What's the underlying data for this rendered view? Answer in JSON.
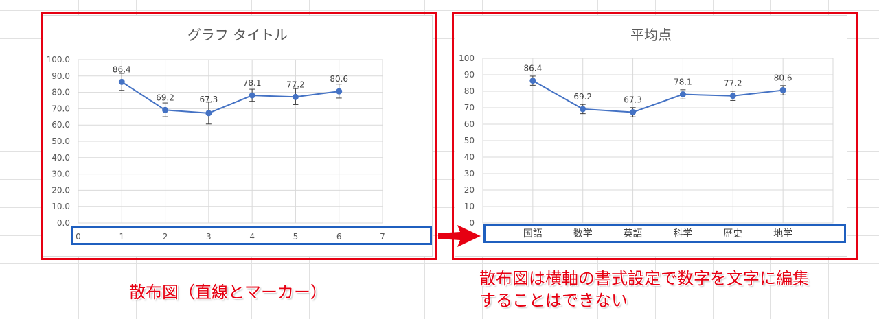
{
  "left_chart": {
    "title": "グラフ タイトル",
    "x_axis_ticks": [
      "0",
      "1",
      "2",
      "3",
      "4",
      "5",
      "6",
      "7"
    ],
    "y_axis_ticks": [
      "100.0",
      "90.0",
      "80.0",
      "70.0",
      "60.0",
      "50.0",
      "40.0",
      "30.0",
      "20.0",
      "10.0",
      "0.0"
    ]
  },
  "right_chart": {
    "title": "平均点",
    "x_axis_labels": [
      "国語",
      "数学",
      "英語",
      "科学",
      "歴史",
      "地学"
    ],
    "y_axis_ticks": [
      "100",
      "90",
      "80",
      "70",
      "60",
      "50",
      "40",
      "30",
      "20",
      "10",
      "0"
    ]
  },
  "captions": {
    "left": "散布図（直線とマーカー）",
    "right_line1": "散布図は横軸の書式設定で数字を文字に編集",
    "right_line2": "することはできない"
  },
  "colors": {
    "highlight_red": "#e60012",
    "highlight_blue": "#1f5fbf",
    "series": "#4472c4"
  },
  "chart_data": [
    {
      "type": "scatter",
      "title": "グラフ タイトル",
      "x": [
        1,
        2,
        3,
        4,
        5,
        6
      ],
      "values": [
        86.4,
        69.2,
        67.3,
        78.1,
        77.2,
        80.6
      ],
      "data_labels": [
        "86.4",
        "69.2",
        "67.3",
        "78.1",
        "77.2",
        "80.6"
      ],
      "error_bars": [
        [
          81.2,
          91.6
        ],
        [
          65.1,
          73.5
        ],
        [
          60.6,
          74.0
        ],
        [
          74.5,
          81.9
        ],
        [
          72.5,
          82.3
        ],
        [
          76.5,
          85.0
        ]
      ],
      "xlabel": "",
      "ylabel": "",
      "xlim": [
        0,
        7
      ],
      "ylim": [
        0,
        100
      ],
      "x_ticks": [
        0,
        1,
        2,
        3,
        4,
        5,
        6,
        7
      ],
      "y_ticks": [
        0,
        10,
        20,
        30,
        40,
        50,
        60,
        70,
        80,
        90,
        100
      ],
      "grid": true,
      "legend": "none",
      "markers": true,
      "lines": "straight"
    },
    {
      "type": "line",
      "title": "平均点",
      "categories": [
        "国語",
        "数学",
        "英語",
        "科学",
        "歴史",
        "地学"
      ],
      "values": [
        86.4,
        69.2,
        67.3,
        78.1,
        77.2,
        80.6
      ],
      "data_labels": [
        "86.4",
        "69.2",
        "67.3",
        "78.1",
        "77.2",
        "80.6"
      ],
      "error_bars": [
        [
          83.6,
          89.2
        ],
        [
          66.4,
          72.0
        ],
        [
          64.5,
          70.1
        ],
        [
          75.3,
          80.9
        ],
        [
          74.4,
          80.0
        ],
        [
          77.8,
          83.4
        ]
      ],
      "xlabel": "",
      "ylabel": "",
      "ylim": [
        0,
        100
      ],
      "y_ticks": [
        0,
        10,
        20,
        30,
        40,
        50,
        60,
        70,
        80,
        90,
        100
      ],
      "grid": true,
      "legend": "none",
      "markers": true
    }
  ]
}
